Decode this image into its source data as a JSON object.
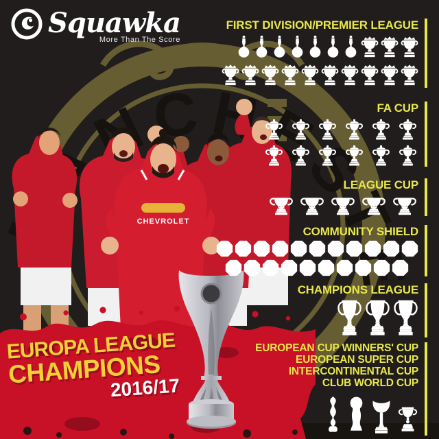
{
  "brand": {
    "name": "Squawka",
    "tagline": "More Than The Score"
  },
  "headline": {
    "line1": "EUROPA LEAGUE",
    "line2": "CHAMPIONS",
    "season": "2016/17"
  },
  "background": {
    "crest_text": "MANCHESTER"
  },
  "jersey": {
    "sponsor": "CHEVROLET"
  },
  "colors": {
    "background": "#201d1c",
    "accent_yellow": "#e9e74c",
    "headline_gold": "#f2d038",
    "splat_red": "#c81126",
    "crest_olive": "#6a6134",
    "trophy_white": "#ffffff"
  },
  "sections": [
    {
      "id": "first-division-premier-league",
      "label": "FIRST DIVISION/PREMIER LEAGUE",
      "rows": [
        [
          {
            "icon": "first-division-trophy",
            "count": 7
          },
          {
            "icon": "premier-league-trophy",
            "count": 3
          }
        ],
        [
          {
            "icon": "premier-league-trophy",
            "count": 10
          }
        ]
      ]
    },
    {
      "id": "fa-cup",
      "label": "FA CUP",
      "rows": [
        [
          {
            "icon": "fa-cup-trophy",
            "count": 6
          }
        ],
        [
          {
            "icon": "fa-cup-trophy",
            "count": 6
          }
        ]
      ]
    },
    {
      "id": "league-cup",
      "label": "LEAGUE CUP",
      "rows": [
        [
          {
            "icon": "league-cup-trophy",
            "count": 5
          }
        ]
      ]
    },
    {
      "id": "community-shield",
      "label": "COMMUNITY SHIELD",
      "rows": [
        [
          {
            "icon": "community-shield",
            "count": 11
          }
        ],
        [
          {
            "icon": "community-shield",
            "count": 10
          }
        ]
      ]
    },
    {
      "id": "champions-league",
      "label": "CHAMPIONS LEAGUE",
      "rows": [
        [
          {
            "icon": "champions-league-trophy",
            "count": 3
          }
        ]
      ]
    },
    {
      "id": "international-cups",
      "labels": [
        "EUROPEAN CUP WINNERS' CUP",
        "EUROPEAN SUPER CUP",
        "INTERCONTINENTAL CUP",
        "CLUB WORLD CUP"
      ],
      "rows": [
        [
          {
            "icon": "cup-winners-cup-trophy",
            "count": 1
          },
          {
            "icon": "european-super-cup-trophy",
            "count": 1
          },
          {
            "icon": "intercontinental-cup-trophy",
            "count": 1
          },
          {
            "icon": "club-world-cup-trophy",
            "count": 1
          }
        ]
      ]
    }
  ]
}
